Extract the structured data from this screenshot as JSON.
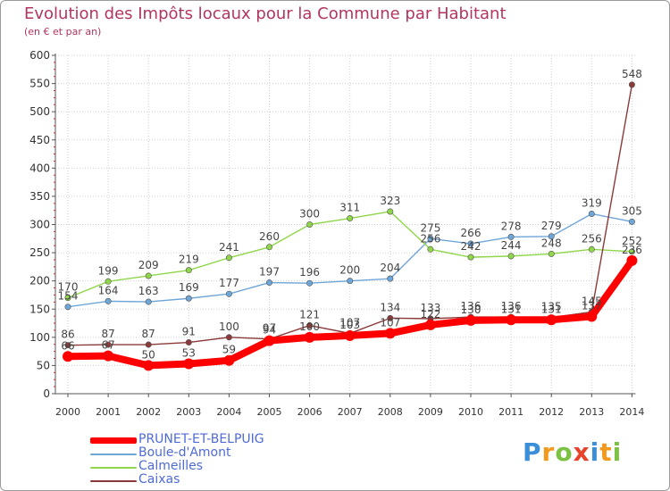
{
  "title": "Evolution des Impôts locaux pour la Commune par Habitant",
  "subtitle": "(en € et par an)",
  "logo_letters": [
    {
      "ch": "P",
      "color": "#3a8fd8"
    },
    {
      "ch": "r",
      "color": "#f39a1e"
    },
    {
      "ch": "o",
      "color": "#7bc142"
    },
    {
      "ch": "x",
      "color": "#e8432a"
    },
    {
      "ch": "i",
      "color": "#3a8fd8"
    },
    {
      "ch": "t",
      "color": "#f39a1e"
    },
    {
      "ch": "i",
      "color": "#7bc142"
    }
  ],
  "chart_data": {
    "type": "line",
    "title": "Evolution des Impôts locaux pour la Commune par Habitant",
    "subtitle": "(en € et par an)",
    "xlabel": "",
    "ylabel": "",
    "x": [
      "2000",
      "2001",
      "2002",
      "2003",
      "2004",
      "2005",
      "2006",
      "2007",
      "2008",
      "2009",
      "2010",
      "2011",
      "2012",
      "2013",
      "2014"
    ],
    "ylim": [
      0,
      600
    ],
    "yticks": [
      0,
      50,
      100,
      150,
      200,
      250,
      300,
      350,
      400,
      450,
      500,
      550,
      600
    ],
    "grid": true,
    "legend_position": "bottom-left",
    "series": [
      {
        "name": "PRUNET-ET-BELPUIG",
        "color": "#ff0000",
        "values": [
          66,
          67,
          50,
          53,
          59,
          94,
          100,
          103,
          107,
          122,
          130,
          131,
          131,
          137,
          236
        ]
      },
      {
        "name": "Boule-d'Amont",
        "color": "#6fa6d8",
        "values": [
          154,
          164,
          163,
          169,
          177,
          197,
          196,
          200,
          204,
          275,
          266,
          278,
          279,
          319,
          305
        ]
      },
      {
        "name": "Calmeilles",
        "color": "#8fd64a",
        "values": [
          170,
          199,
          209,
          219,
          241,
          260,
          300,
          311,
          323,
          256,
          242,
          244,
          248,
          256,
          252
        ]
      },
      {
        "name": "Caixas",
        "color": "#8b3a3a",
        "values": [
          86,
          87,
          87,
          91,
          100,
          97,
          121,
          107,
          134,
          133,
          136,
          136,
          135,
          145,
          548
        ]
      }
    ]
  }
}
